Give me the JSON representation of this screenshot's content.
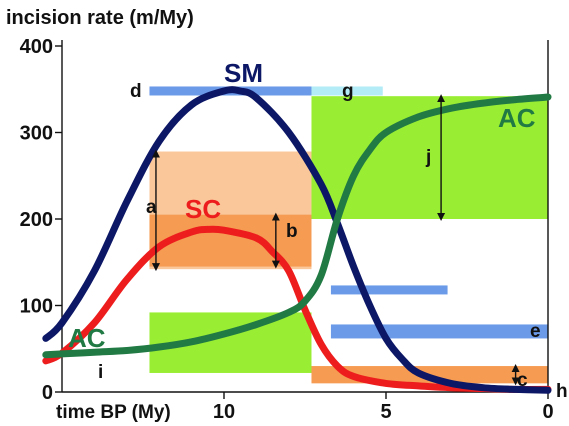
{
  "chart_data": {
    "type": "line",
    "ylabel": "incision rate (m/My)",
    "xlabel": "time BP (My)",
    "xlim": [
      15,
      0
    ],
    "ylim": [
      0,
      400
    ],
    "x_ticks": [
      10,
      5,
      0
    ],
    "y_ticks": [
      0,
      100,
      200,
      300,
      400
    ],
    "grid": false,
    "series": [
      {
        "name": "SM",
        "color": "#0c1766",
        "points": [
          [
            15.5,
            62
          ],
          [
            15,
            80
          ],
          [
            14,
            140
          ],
          [
            13,
            220
          ],
          [
            12,
            290
          ],
          [
            11,
            332
          ],
          [
            10,
            348
          ],
          [
            9.5,
            348
          ],
          [
            9,
            340
          ],
          [
            8,
            300
          ],
          [
            7,
            240
          ],
          [
            6.5,
            195
          ],
          [
            6,
            145
          ],
          [
            5.5,
            100
          ],
          [
            5,
            62
          ],
          [
            4.5,
            38
          ],
          [
            4,
            22
          ],
          [
            3,
            10
          ],
          [
            2,
            5
          ],
          [
            1,
            3
          ],
          [
            0,
            2
          ]
        ]
      },
      {
        "name": "SC",
        "color": "#ee1d1d",
        "points": [
          [
            15.5,
            36
          ],
          [
            15,
            45
          ],
          [
            14,
            80
          ],
          [
            13,
            130
          ],
          [
            12,
            168
          ],
          [
            11,
            185
          ],
          [
            10.5,
            188
          ],
          [
            10,
            187
          ],
          [
            9,
            178
          ],
          [
            8.5,
            162
          ],
          [
            8,
            140
          ],
          [
            7.5,
            95
          ],
          [
            7,
            55
          ],
          [
            6.5,
            30
          ],
          [
            6,
            18
          ],
          [
            5,
            10
          ],
          [
            4,
            7
          ],
          [
            3,
            5
          ],
          [
            2,
            4
          ],
          [
            1,
            3
          ],
          [
            0,
            3
          ]
        ]
      },
      {
        "name": "AC",
        "color": "#217a44",
        "points": [
          [
            15.5,
            43
          ],
          [
            15,
            44
          ],
          [
            14,
            46
          ],
          [
            13,
            48
          ],
          [
            12,
            52
          ],
          [
            11,
            58
          ],
          [
            10,
            67
          ],
          [
            9,
            78
          ],
          [
            8,
            92
          ],
          [
            7.5,
            105
          ],
          [
            7,
            135
          ],
          [
            6.5,
            200
          ],
          [
            6,
            250
          ],
          [
            5.5,
            280
          ],
          [
            5,
            300
          ],
          [
            4,
            318
          ],
          [
            3,
            328
          ],
          [
            2,
            334
          ],
          [
            1,
            338
          ],
          [
            0,
            341
          ]
        ]
      }
    ],
    "ranges": [
      {
        "label": "a",
        "fill": "#f9c79a",
        "x0": 12.3,
        "x1": 7.3,
        "y0": 142,
        "y1": 278,
        "arrow_x": 12.1
      },
      {
        "label": "b",
        "fill": "#f59b52",
        "x0": 12.3,
        "x1": 7.3,
        "y0": 145,
        "y1": 205,
        "arrow_x": 8.4
      },
      {
        "label": "c",
        "fill": "#f59b52",
        "x0": 7.3,
        "x1": 0,
        "y0": 10,
        "y1": 30,
        "arrow_x": 1.0
      },
      {
        "label": "j",
        "fill": "#99ee33",
        "x0": 7.3,
        "x1": 0,
        "y0": 200,
        "y1": 342,
        "arrow_x": 3.3
      },
      {
        "label": "i",
        "fill": "#99ee33",
        "x0": 12.3,
        "x1": 7.3,
        "y0": 22,
        "y1": 92,
        "arrow_x": null
      }
    ],
    "bars": [
      {
        "label": "d",
        "color": "#6a9ae8",
        "x0": 12.3,
        "x1": 7.3,
        "y": 348
      },
      {
        "label": "g",
        "color": "#b3ecf6",
        "x0": 7.3,
        "x1": 5.1,
        "y": 348
      },
      {
        "label": "",
        "color": "#6a9ae8",
        "x0": 6.7,
        "x1": 3.1,
        "y": 118
      },
      {
        "label": "e",
        "color": "#6a9ae8",
        "x0": 6.7,
        "x1": 0,
        "y": 70
      }
    ],
    "annotations": [
      {
        "text": "h",
        "x": -0.4,
        "y": 5
      }
    ]
  }
}
